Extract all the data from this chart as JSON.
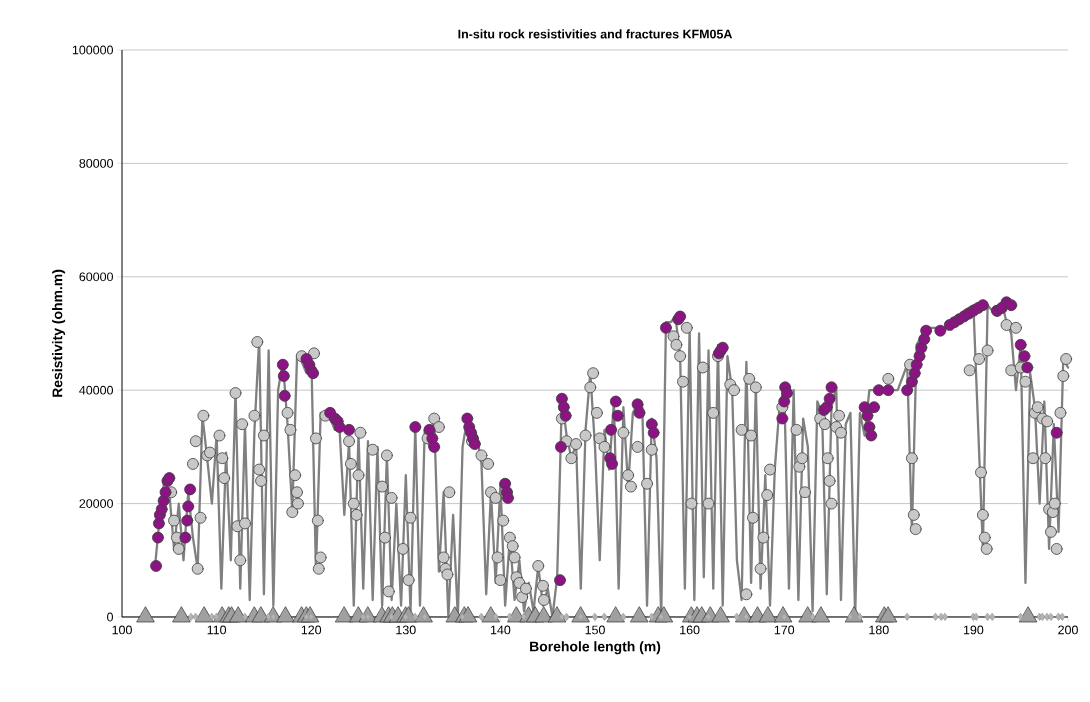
{
  "chart_data": {
    "type": "line",
    "title": "In-situ rock resistivities and fractures KFM05A",
    "xlabel": "Borehole length (m)",
    "ylabel": "Resistivity (ohm.m)",
    "xlim": [
      100,
      200
    ],
    "ylim": [
      0,
      100000
    ],
    "xticks": [
      100,
      110,
      120,
      130,
      140,
      150,
      160,
      170,
      180,
      190,
      200
    ],
    "yticks": [
      0,
      20000,
      40000,
      60000,
      80000,
      100000
    ],
    "grid": "y",
    "line_style": "solid",
    "series": [
      {
        "marker": "none",
        "color": "#808080",
        "x": [
          103.5,
          104,
          104.5,
          105,
          105.5,
          106,
          106.5,
          107,
          107.5,
          108,
          108.5,
          109,
          109.5,
          110,
          110.5,
          111,
          111.5,
          112,
          112.5,
          113,
          113.5,
          114,
          114.5,
          115,
          115.5,
          116,
          116.5,
          117,
          117.5,
          118,
          118.5,
          119,
          119.5,
          120,
          120.5,
          121,
          121.5,
          122,
          122.5,
          123,
          123.5,
          124,
          124.5,
          125,
          125.5,
          126,
          126.5,
          127,
          127.5,
          128,
          128.5,
          129,
          129.5,
          130,
          130.5,
          131,
          131.5,
          132,
          132.5,
          133,
          133.5,
          134,
          134.5,
          135,
          135.5,
          136,
          136.5,
          137,
          137.5,
          138,
          138.5,
          139,
          139.5,
          140,
          140.5,
          141,
          141.5,
          142,
          142.5,
          143,
          143.5,
          144,
          144.5,
          145,
          145.5,
          146,
          146.5,
          147,
          147.5,
          148,
          148.5,
          149,
          149.5,
          150,
          150.5,
          151,
          151.5,
          152,
          152.5,
          153,
          153.5,
          154,
          154.5,
          155,
          155.5,
          156,
          156.5,
          157,
          157.5,
          158,
          158.5,
          159,
          159.5,
          160,
          160.5,
          161,
          161.5,
          162,
          162.5,
          163,
          163.5,
          164,
          164.5,
          165,
          165.5,
          166,
          166.5,
          167,
          167.5,
          168,
          168.5,
          169,
          169.5,
          170,
          170.5,
          171,
          171.5,
          172,
          172.5,
          173,
          173.5,
          174,
          174.5,
          175,
          175.5,
          176,
          176.5,
          177,
          177.5,
          178,
          178.5,
          179,
          180,
          181,
          182,
          183,
          183.5,
          184,
          185,
          186,
          187,
          188,
          189,
          190,
          191,
          191.5,
          192,
          193,
          193.5,
          194,
          194.5,
          195,
          195.5,
          196,
          196.5,
          197,
          197.5,
          198,
          198.5,
          199,
          199.5,
          200
        ],
        "values": [
          9000,
          18000,
          24500,
          22000,
          12000,
          20000,
          10000,
          22000,
          14000,
          8500,
          35500,
          28000,
          20000,
          32000,
          5000,
          29000,
          10000,
          40000,
          5000,
          34000,
          3000,
          33000,
          49000,
          4000,
          47000,
          2000,
          40000,
          45000,
          34000,
          18500,
          46000,
          45000,
          43000,
          47000,
          8000,
          36000,
          36000,
          35000,
          33000,
          33000,
          18000,
          31000,
          2000,
          32500,
          5000,
          31000,
          3000,
          30000,
          2000,
          28500,
          3000,
          20000,
          2000,
          25000,
          1000,
          33500,
          2000,
          33000,
          30000,
          35000,
          8000,
          22000,
          0,
          18000,
          0,
          30000,
          35000,
          31000,
          32000,
          27000,
          4000,
          22000,
          6000,
          23500,
          2000,
          14000,
          3000,
          10000,
          1000,
          6000,
          1000,
          9000,
          2000,
          5000,
          0,
          7000,
          38500,
          32000,
          28000,
          30500,
          5000,
          33000,
          43000,
          30000,
          10000,
          33000,
          26000,
          38000,
          5000,
          37000,
          23000,
          36000,
          37500,
          37000,
          2000,
          35000,
          28000,
          0,
          52000,
          52000,
          53000,
          46000,
          5000,
          51000,
          3000,
          50000,
          7000,
          47000,
          5000,
          48000,
          2000,
          46000,
          40000,
          10000,
          3000,
          45000,
          6000,
          40500,
          5000,
          25000,
          2000,
          26000,
          37000,
          40500,
          5000,
          40000,
          3000,
          35000,
          30000,
          1000,
          38000,
          36000,
          4000,
          37000,
          40500,
          3000,
          34000,
          36000,
          0,
          36000,
          32000,
          40000,
          40000,
          40000,
          40000,
          44500,
          15000,
          48000,
          51000,
          51000,
          51000,
          52000,
          54000,
          55000,
          12000,
          55000,
          54000,
          55500,
          52000,
          50000,
          40000,
          48000,
          6000,
          43000,
          37000,
          20000,
          38000,
          12000,
          34000,
          15000,
          45500,
          44000
        ]
      },
      {
        "type": "scatter",
        "marker": "circle",
        "color": "#c8c8c8",
        "x": [
          105.2,
          105.5,
          105.8,
          106,
          107.5,
          107.8,
          108,
          108.3,
          108.6,
          109,
          109.3,
          110.3,
          110.6,
          110.8,
          112,
          112.2,
          112.5,
          112.7,
          113,
          114,
          114.3,
          114.5,
          114.7,
          115,
          117.5,
          117.8,
          118,
          118.3,
          118.5,
          118.6,
          119,
          120.3,
          120.5,
          120.7,
          120.8,
          121,
          121.5,
          124,
          124.2,
          124.5,
          124.8,
          125,
          125.2,
          126.5,
          127.5,
          127.8,
          128,
          128.2,
          128.5,
          129.7,
          130.3,
          130.5,
          132.3,
          133,
          133.5,
          134,
          134.2,
          134.4,
          134.6,
          137,
          138,
          138.7,
          139,
          139.5,
          139.7,
          140.3,
          140,
          141,
          141.3,
          141.5,
          141.7,
          142,
          142.3,
          142.7,
          144,
          144.5,
          144.6,
          146.5,
          147,
          147.5,
          148,
          149,
          149.5,
          149.8,
          150.2,
          150.5,
          151,
          153,
          153.5,
          153.8,
          154.5,
          155.5,
          156,
          158.3,
          158.6,
          159,
          159.3,
          159.7,
          160.2,
          161.4,
          162,
          162.5,
          163,
          164.3,
          164.7,
          165.5,
          166,
          166.3,
          166.5,
          166.7,
          167,
          167.5,
          167.8,
          168.2,
          168.5,
          169.8,
          171.3,
          171.6,
          171.9,
          172.2,
          173.8,
          174.3,
          174.6,
          174.8,
          175,
          175.5,
          175.8,
          176,
          181,
          183.3,
          183.5,
          183.7,
          183.9,
          189.6,
          190.6,
          190.8,
          191,
          191.2,
          191.4,
          191.5,
          192.5,
          193.5,
          194,
          194.5,
          195,
          195.5,
          196.3,
          196.5,
          196.8,
          197.3,
          197.6,
          197.8,
          198,
          198.2,
          198.4,
          198.6,
          198.8,
          199.2,
          199.5,
          199.8
        ],
        "values": [
          22000,
          17000,
          14000,
          12000,
          27000,
          31000,
          8500,
          17500,
          35500,
          28500,
          29000,
          32000,
          28000,
          24500,
          39500,
          16000,
          10000,
          34000,
          16500,
          35500,
          48500,
          26000,
          24000,
          32000,
          36000,
          33000,
          18500,
          25000,
          22000,
          20000,
          46000,
          46500,
          31500,
          17000,
          8500,
          10500,
          35500,
          31000,
          27000,
          20000,
          18000,
          25000,
          32500,
          29500,
          23000,
          14000,
          28500,
          4500,
          21000,
          12000,
          6500,
          17500,
          31500,
          35000,
          33500,
          10500,
          8500,
          7500,
          22000,
          31000,
          28500,
          27000,
          22000,
          21000,
          10500,
          17000,
          6500,
          14000,
          12500,
          10500,
          7000,
          6000,
          3500,
          5000,
          9000,
          5500,
          3000,
          35000,
          31000,
          28000,
          30500,
          32000,
          40500,
          43000,
          36000,
          31500,
          30000,
          32500,
          25000,
          23000,
          30000,
          23500,
          29500,
          49500,
          48000,
          46000,
          41500,
          51000,
          20000,
          44000,
          20000,
          36000,
          46000,
          41000,
          40000,
          33000,
          4000,
          42000,
          32000,
          17500,
          40500,
          8500,
          14000,
          21500,
          26000,
          37000,
          33000,
          26500,
          28000,
          22000,
          35000,
          34000,
          28000,
          24000,
          20000,
          33500,
          35500,
          32500,
          42000,
          44500,
          28000,
          18000,
          15500,
          43500,
          45500,
          25500,
          18000,
          14000,
          12000,
          47000,
          54000,
          51500,
          43500,
          51000,
          44000,
          41500,
          28000,
          36000,
          37000,
          35000,
          28000,
          34500,
          19000,
          15000,
          18500,
          20000,
          12000,
          36000,
          42500,
          45500
        ]
      },
      {
        "type": "scatter",
        "marker": "circle",
        "color": "#8c1383",
        "x": [
          103.6,
          103.8,
          103.9,
          104,
          104.2,
          104.4,
          104.6,
          104.8,
          105,
          106.7,
          106.9,
          107,
          107.2,
          117,
          117.1,
          117.2,
          119.5,
          119.8,
          120,
          120.2,
          122,
          122.5,
          122.8,
          123,
          124,
          131,
          132.5,
          132.8,
          133,
          136.5,
          136.7,
          136.9,
          137.1,
          137.3,
          140.5,
          140.7,
          140.8,
          146.3,
          146.4,
          146.5,
          146.7,
          146.9,
          151.6,
          151.7,
          151.8,
          152.2,
          152.4,
          154.5,
          154.7,
          156,
          156.2,
          157.5,
          158.8,
          159,
          163.1,
          163.3,
          163.5,
          169.8,
          170,
          170.1,
          170.3,
          174.2,
          174.5,
          174.8,
          175,
          178.5,
          178.8,
          179,
          179.2,
          179.5,
          180,
          181,
          183,
          183.5,
          183.8,
          184,
          184.3,
          184.5,
          184.8,
          185,
          186.5,
          187.5,
          188,
          188.5,
          189,
          189.5,
          190,
          190.5,
          191,
          192.5,
          193,
          193.5,
          194,
          195,
          195.4,
          195.7,
          198.8
        ],
        "values": [
          9000,
          14000,
          16500,
          18000,
          19000,
          20500,
          22000,
          24000,
          24500,
          14000,
          17000,
          19500,
          22500,
          44500,
          42500,
          39000,
          45500,
          44500,
          43500,
          43000,
          36000,
          35000,
          34500,
          33500,
          33000,
          33500,
          33000,
          31500,
          30000,
          35000,
          33500,
          32500,
          31500,
          30500,
          23500,
          22000,
          21000,
          6500,
          30000,
          38500,
          37000,
          35500,
          28000,
          33000,
          27000,
          38000,
          35500,
          37500,
          36000,
          34000,
          32500,
          51000,
          52500,
          53000,
          46500,
          47000,
          47500,
          35000,
          38000,
          40500,
          39500,
          36500,
          37000,
          38500,
          40500,
          37000,
          35500,
          33500,
          32000,
          37000,
          40000,
          40000,
          40000,
          41500,
          43000,
          44500,
          46000,
          47500,
          49000,
          50500,
          50500,
          51500,
          52000,
          52500,
          53000,
          53500,
          54000,
          54500,
          55000,
          54000,
          54500,
          55500,
          55000,
          48000,
          46000,
          44000,
          32500
        ]
      },
      {
        "type": "scatter",
        "marker": "diamond",
        "color": "#b4b4b4",
        "x": [
          107.3,
          107.8,
          109.5,
          110,
          113,
          115.5,
          116,
          119.5,
          120,
          125.5,
          126,
          128.5,
          130,
          131,
          132,
          136,
          138,
          139.5,
          141,
          142.5,
          146.5,
          147,
          148.5,
          150,
          151,
          153,
          156,
          157,
          160,
          162,
          165,
          166,
          170,
          173,
          177,
          178,
          183,
          186,
          186.6,
          187,
          190,
          190.3,
          191.5,
          192,
          195,
          197,
          197.3,
          197.8,
          198.2,
          199,
          199.4
        ],
        "values": [
          0,
          0,
          0,
          0,
          0,
          0,
          0,
          0,
          0,
          0,
          0,
          0,
          0,
          0,
          0,
          0,
          0,
          0,
          0,
          0,
          0,
          0,
          0,
          0,
          0,
          0,
          0,
          0,
          0,
          0,
          0,
          0,
          0,
          0,
          0,
          0,
          0,
          0,
          0,
          0,
          0,
          0,
          0,
          0,
          0,
          0,
          0,
          0,
          0,
          0,
          0
        ]
      },
      {
        "type": "scatter",
        "marker": "triangle",
        "color": "#a0a0a0",
        "x": [
          102.5,
          106.3,
          108.7,
          110.6,
          111.3,
          111.6,
          112.3,
          114,
          114.7,
          116,
          117.3,
          119,
          119.5,
          119.9,
          123.5,
          125,
          126,
          127.5,
          128.2,
          128.6,
          129.2,
          130,
          130.3,
          131.9,
          135.2,
          136.2,
          136.6,
          139,
          141.7,
          143,
          143.7,
          144.6,
          146,
          148.5,
          152.2,
          154.7,
          156.7,
          157.3,
          160.2,
          160.8,
          161.3,
          162.2,
          163.3,
          165.8,
          167.2,
          168.3,
          169.9,
          172.5,
          173.9,
          177.4,
          180.6,
          181,
          195.8
        ],
        "values": [
          0,
          0,
          0,
          0,
          0,
          0,
          0,
          0,
          0,
          0,
          0,
          0,
          0,
          0,
          0,
          0,
          0,
          0,
          0,
          0,
          0,
          0,
          0,
          0,
          0,
          0,
          0,
          0,
          0,
          0,
          0,
          0,
          0,
          0,
          0,
          0,
          0,
          0,
          0,
          0,
          0,
          0,
          0,
          0,
          0,
          0,
          0,
          0,
          0,
          0,
          0,
          0,
          0
        ]
      }
    ]
  }
}
